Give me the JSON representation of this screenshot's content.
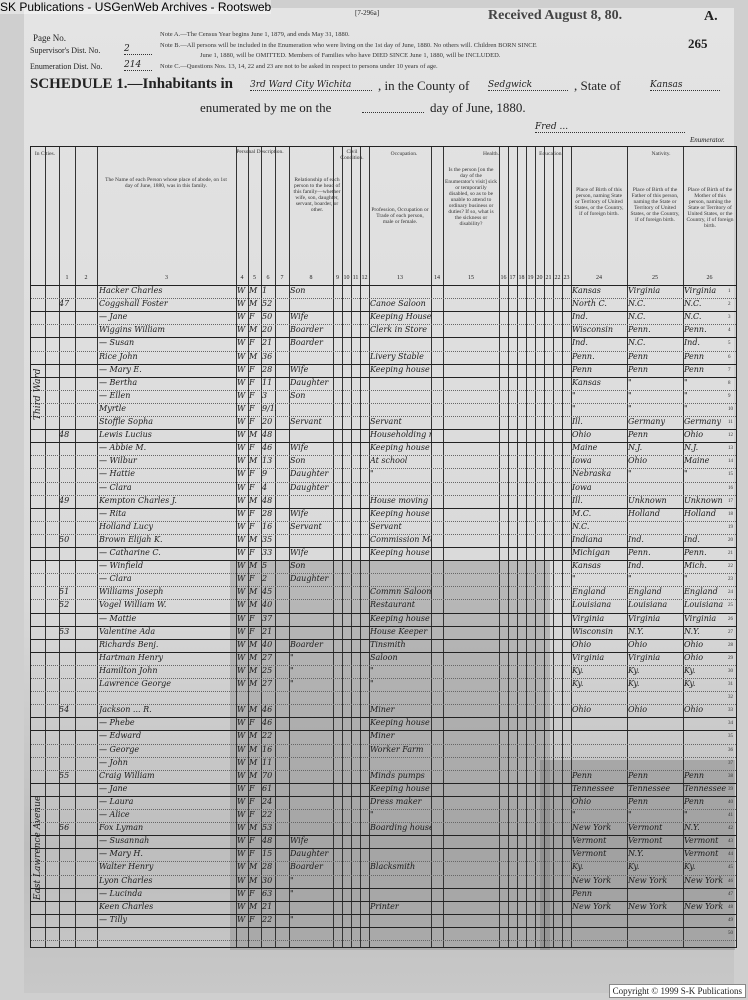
{
  "source_label": "SK Publications - USGenWeb Archives - Rootsweb",
  "form_number": "[7-296a]",
  "received_stamp": "Received August 8, 80.",
  "sheet_letter": "A.",
  "page_number": "265",
  "left_header": {
    "page_no_label": "Page No.",
    "supervisor_label": "Supervisor's Dist. No.",
    "supervisor_value": "2",
    "enumeration_label": "Enumeration Dist. No.",
    "enumeration_value": "214"
  },
  "notes": [
    "Note A.—The Census Year begins June 1, 1879, and ends May 31, 1880.",
    "Note B.—All persons will be included in the Enumeration who were living on the 1st day of June, 1880. No others will. Children BORN SINCE",
    "June 1, 1880, will be OMITTED. Members of Families who have DIED SINCE June 1, 1880, will be INCLUDED.",
    "Note C.—Questions Nos. 13, 14, 22 and 23 are not to be asked in respect to persons under 10 years of age."
  ],
  "schedule": {
    "prefix": "SCHEDULE 1.—Inhabitants in",
    "place": "3rd Ward City Wichita",
    "county_label": ", in the County of",
    "county": "Sedgwick",
    "state_label": ", State of",
    "state": "Kansas",
    "enumerated_label": "enumerated by me on the",
    "day_label": "day of June, 1880.",
    "enumerator_signature": "Fred ... ",
    "enumerator_label": "Enumerator."
  },
  "column_headers": {
    "in_cities": "In Cities.",
    "name": "The Name of each Person whose place of abode, on 1st day of June, 1880, was in this family.",
    "personal": "Personal Description.",
    "relation": "Relationship of each person to the head of this family—whether wife, son, daughter, servant, boarder, or other.",
    "civil": "Civil Condition.",
    "occupation_group": "Occupation.",
    "occupation": "Profession, Occupation or Trade of each person, male or female.",
    "health": "Health.",
    "health_q": "Is the person [on the day of the Enumerator's visit] sick or temporarily disabled, so as to be unable to attend to ordinary business or duties? If so, what is the sickness or disability?",
    "education": "Education.",
    "nativity": "Nativity.",
    "birth_person": "Place of Birth of this person, naming State or Territory of United States, or the Country, if of foreign birth.",
    "birth_father": "Place of Birth of the Father of this person, naming the State or Territory of United States, or the Country, if of foreign birth.",
    "birth_mother": "Place of Birth of the Mother of this person, naming the State or Territory of United States, or the Country, if of foreign birth.",
    "numbers": [
      "1",
      "2",
      "3",
      "4",
      "5",
      "6",
      "7",
      "8",
      "9",
      "10",
      "11",
      "12",
      "13",
      "14",
      "15",
      "16",
      "17",
      "18",
      "19",
      "20",
      "21",
      "22",
      "23",
      "24",
      "25",
      "26"
    ]
  },
  "margin_notes": [
    "Third Ward",
    "East Lawrence Avenue"
  ],
  "rows": [
    {
      "dw": "",
      "name": "Hacker Charles",
      "c": "W",
      "s": "M",
      "a": "1",
      "rel": "Son",
      "occ": "",
      "b": "Kansas",
      "bf": "Virginia",
      "bm": "Virginia"
    },
    {
      "dw": "47",
      "name": "Coggshall Foster",
      "c": "W",
      "s": "M",
      "a": "52",
      "rel": "",
      "occ": "Canoe Saloon",
      "b": "North C.",
      "bf": "N.C.",
      "bm": "N.C."
    },
    {
      "dw": "",
      "name": "— Jane",
      "c": "W",
      "s": "F",
      "a": "50",
      "rel": "Wife",
      "occ": "Keeping House",
      "b": "Ind.",
      "bf": "N.C.",
      "bm": "N.C."
    },
    {
      "dw": "",
      "name": "Wiggins William",
      "c": "W",
      "s": "M",
      "a": "20",
      "rel": "Boarder",
      "occ": "Clerk in Store",
      "b": "Wisconsin",
      "bf": "Penn.",
      "bm": "Penn."
    },
    {
      "dw": "",
      "name": "— Susan",
      "c": "W",
      "s": "F",
      "a": "21",
      "rel": "Boarder",
      "occ": "",
      "b": "Ind.",
      "bf": "N.C.",
      "bm": "Ind."
    },
    {
      "dw": "",
      "name": "Rice John",
      "c": "W",
      "s": "M",
      "a": "36",
      "rel": "",
      "occ": "Livery Stable",
      "b": "Penn.",
      "bf": "Penn",
      "bm": "Penn"
    },
    {
      "dw": "",
      "name": "— Mary E.",
      "c": "W",
      "s": "F",
      "a": "28",
      "rel": "Wife",
      "occ": "Keeping house",
      "b": "Penn",
      "bf": "Penn",
      "bm": "Penn"
    },
    {
      "dw": "",
      "name": "— Bertha",
      "c": "W",
      "s": "F",
      "a": "11",
      "rel": "Daughter",
      "occ": "",
      "b": "Kansas",
      "bf": "\"",
      "bm": "\""
    },
    {
      "dw": "",
      "name": "— Ellen",
      "c": "W",
      "s": "F",
      "a": "3",
      "rel": "Son",
      "occ": "",
      "b": "\"",
      "bf": "\"",
      "bm": "\""
    },
    {
      "dw": "",
      "name": "Myrtle",
      "c": "W",
      "s": "F",
      "a": "9/12",
      "rel": "",
      "occ": "",
      "b": "\"",
      "bf": "\"",
      "bm": "\""
    },
    {
      "dw": "",
      "name": "Stoffle Sopha",
      "c": "W",
      "s": "F",
      "a": "20",
      "rel": "Servant",
      "occ": "Servant",
      "b": "Ill.",
      "bf": "Germany",
      "bm": "Germany"
    },
    {
      "dw": "48",
      "name": "Lewis Lucius",
      "c": "W",
      "s": "M",
      "a": "48",
      "rel": "",
      "occ": "Householding mgr",
      "b": "Ohio",
      "bf": "Penn",
      "bm": "Ohio"
    },
    {
      "dw": "",
      "name": "— Abbie M.",
      "c": "W",
      "s": "F",
      "a": "46",
      "rel": "Wife",
      "occ": "Keeping house",
      "b": "Maine",
      "bf": "N.J.",
      "bm": "N.J."
    },
    {
      "dw": "",
      "name": "— Wilbur",
      "c": "W",
      "s": "M",
      "a": "13",
      "rel": "Son",
      "occ": "At school",
      "b": "Iowa",
      "bf": "Ohio",
      "bm": "Maine"
    },
    {
      "dw": "",
      "name": "— Hattie",
      "c": "W",
      "s": "F",
      "a": "9",
      "rel": "Daughter",
      "occ": "\"",
      "b": "Nebraska",
      "bf": "\"",
      "bm": "\""
    },
    {
      "dw": "",
      "name": "— Clara",
      "c": "W",
      "s": "F",
      "a": "4",
      "rel": "Daughter",
      "occ": "",
      "b": "Iowa",
      "bf": "",
      "bm": ""
    },
    {
      "dw": "49",
      "name": "Kempton Charles J.",
      "c": "W",
      "s": "M",
      "a": "48",
      "rel": "",
      "occ": "House moving",
      "b": "Ill.",
      "bf": "Unknown",
      "bm": "Unknown"
    },
    {
      "dw": "",
      "name": "— Rita",
      "c": "W",
      "s": "F",
      "a": "28",
      "rel": "Wife",
      "occ": "Keeping house",
      "b": "M.C.",
      "bf": "Holland",
      "bm": "Holland"
    },
    {
      "dw": "",
      "name": "Holland Lucy",
      "c": "W",
      "s": "F",
      "a": "16",
      "rel": "Servant",
      "occ": "Servant",
      "b": "N.C.",
      "bf": "",
      "bm": ""
    },
    {
      "dw": "50",
      "name": "Brown Elijah K.",
      "c": "W",
      "s": "M",
      "a": "35",
      "rel": "",
      "occ": "Commission Merchant",
      "b": "Indiana",
      "bf": "Ind.",
      "bm": "Ind."
    },
    {
      "dw": "",
      "name": "— Catharine C.",
      "c": "W",
      "s": "F",
      "a": "33",
      "rel": "Wife",
      "occ": "Keeping house",
      "b": "Michigan",
      "bf": "Penn.",
      "bm": "Penn."
    },
    {
      "dw": "",
      "name": "— Winfield",
      "c": "W",
      "s": "M",
      "a": "5",
      "rel": "Son",
      "occ": "",
      "b": "Kansas",
      "bf": "Ind.",
      "bm": "Mich."
    },
    {
      "dw": "",
      "name": "— Clara",
      "c": "W",
      "s": "F",
      "a": "2",
      "rel": "Daughter",
      "occ": "",
      "b": "\"",
      "bf": "\"",
      "bm": "\""
    },
    {
      "dw": "51",
      "name": "Williams Joseph",
      "c": "W",
      "s": "M",
      "a": "45",
      "rel": "",
      "occ": "Commn Saloon",
      "b": "England",
      "bf": "England",
      "bm": "England"
    },
    {
      "dw": "52",
      "name": "Vogel William W.",
      "c": "W",
      "s": "M",
      "a": "40",
      "rel": "",
      "occ": "Restaurant",
      "b": "Louisiana",
      "bf": "Louisiana",
      "bm": "Louisiana"
    },
    {
      "dw": "",
      "name": "— Mattie",
      "c": "W",
      "s": "F",
      "a": "37",
      "rel": "",
      "occ": "Keeping house",
      "b": "Virginia",
      "bf": "Virginia",
      "bm": "Virginia"
    },
    {
      "dw": "53",
      "name": "Valentine Ada",
      "c": "W",
      "s": "F",
      "a": "21",
      "rel": "",
      "occ": "House Keeper",
      "b": "Wisconsin",
      "bf": "N.Y.",
      "bm": "N.Y."
    },
    {
      "dw": "",
      "name": "Richards Benj.",
      "c": "W",
      "s": "M",
      "a": "40",
      "rel": "Boarder",
      "occ": "Tinsmith",
      "b": "Ohio",
      "bf": "Ohio",
      "bm": "Ohio"
    },
    {
      "dw": "",
      "name": "Hartman Henry",
      "c": "W",
      "s": "M",
      "a": "27",
      "rel": "\"",
      "occ": "Saloon",
      "b": "Virginia",
      "bf": "Virginia",
      "bm": "Ohio"
    },
    {
      "dw": "",
      "name": "Hamilton John",
      "c": "W",
      "s": "M",
      "a": "25",
      "rel": "\"",
      "occ": "\"",
      "b": "Ky.",
      "bf": "Ky.",
      "bm": "Ky."
    },
    {
      "dw": "",
      "name": "Lawrence George",
      "c": "W",
      "s": "M",
      "a": "27",
      "rel": "\"",
      "occ": "\"",
      "b": "Ky.",
      "bf": "Ky.",
      "bm": "Ky."
    },
    {
      "dw": "",
      "name": "",
      "c": "",
      "s": "",
      "a": "",
      "rel": "",
      "occ": "",
      "b": "",
      "bf": "",
      "bm": ""
    },
    {
      "dw": "54",
      "name": "Jackson ... R.",
      "c": "W",
      "s": "M",
      "a": "46",
      "rel": "",
      "occ": "Miner",
      "b": "Ohio",
      "bf": "Ohio",
      "bm": "Ohio"
    },
    {
      "dw": "",
      "name": "— Phebe",
      "c": "W",
      "s": "F",
      "a": "46",
      "rel": "",
      "occ": "Keeping house",
      "b": "",
      "bf": "",
      "bm": ""
    },
    {
      "dw": "",
      "name": "— Edward",
      "c": "W",
      "s": "M",
      "a": "22",
      "rel": "",
      "occ": "Miner",
      "b": "",
      "bf": "",
      "bm": ""
    },
    {
      "dw": "",
      "name": "— George",
      "c": "W",
      "s": "M",
      "a": "16",
      "rel": "",
      "occ": "Worker Farm",
      "b": "",
      "bf": "",
      "bm": ""
    },
    {
      "dw": "",
      "name": "— John",
      "c": "W",
      "s": "M",
      "a": "11",
      "rel": "",
      "occ": "",
      "b": "",
      "bf": "",
      "bm": ""
    },
    {
      "dw": "55",
      "name": "Craig William",
      "c": "W",
      "s": "M",
      "a": "70",
      "rel": "",
      "occ": "Minds pumps",
      "b": "Penn",
      "bf": "Penn",
      "bm": "Penn"
    },
    {
      "dw": "",
      "name": "— Jane",
      "c": "W",
      "s": "F",
      "a": "61",
      "rel": "",
      "occ": "Keeping house",
      "b": "Tennessee",
      "bf": "Tennessee",
      "bm": "Tennessee"
    },
    {
      "dw": "",
      "name": "— Laura",
      "c": "W",
      "s": "F",
      "a": "24",
      "rel": "",
      "occ": "Dress maker",
      "b": "Ohio",
      "bf": "Penn",
      "bm": "Penn"
    },
    {
      "dw": "",
      "name": "— Alice",
      "c": "W",
      "s": "F",
      "a": "22",
      "rel": "",
      "occ": "\"",
      "b": "\"",
      "bf": "\"",
      "bm": "\""
    },
    {
      "dw": "56",
      "name": "Fox Lyman",
      "c": "W",
      "s": "M",
      "a": "53",
      "rel": "",
      "occ": "Boarding house",
      "b": "New York",
      "bf": "Vermont",
      "bm": "N.Y."
    },
    {
      "dw": "",
      "name": "— Susannah",
      "c": "W",
      "s": "F",
      "a": "48",
      "rel": "Wife",
      "occ": "",
      "b": "Vermont",
      "bf": "Vermont",
      "bm": "Vermont"
    },
    {
      "dw": "",
      "name": "— Mary H.",
      "c": "W",
      "s": "F",
      "a": "15",
      "rel": "Daughter",
      "occ": "",
      "b": "Vermont",
      "bf": "N.Y.",
      "bm": "Vermont"
    },
    {
      "dw": "",
      "name": "Walter Henry",
      "c": "W",
      "s": "M",
      "a": "28",
      "rel": "Boarder",
      "occ": "Blacksmith",
      "b": "Ky.",
      "bf": "Ky.",
      "bm": "Ky."
    },
    {
      "dw": "",
      "name": "Lyon Charles",
      "c": "W",
      "s": "M",
      "a": "30",
      "rel": "\"",
      "occ": "",
      "b": "New York",
      "bf": "New York",
      "bm": "New York"
    },
    {
      "dw": "",
      "name": "— Lucinda",
      "c": "W",
      "s": "F",
      "a": "63",
      "rel": "\"",
      "occ": "",
      "b": "Penn",
      "bf": "",
      "bm": ""
    },
    {
      "dw": "",
      "name": "Keen Charles",
      "c": "W",
      "s": "M",
      "a": "21",
      "rel": "",
      "occ": "Printer",
      "b": "New York",
      "bf": "New York",
      "bm": "New York"
    },
    {
      "dw": "",
      "name": "— Tilly",
      "c": "W",
      "s": "F",
      "a": "22",
      "rel": "\"",
      "occ": "",
      "b": "",
      "bf": "",
      "bm": ""
    },
    {
      "dw": "",
      "name": "",
      "c": "",
      "s": "",
      "a": "",
      "rel": "",
      "occ": "",
      "b": "",
      "bf": "",
      "bm": ""
    }
  ],
  "copyright": "Copyright © 1999 S-K Publications"
}
